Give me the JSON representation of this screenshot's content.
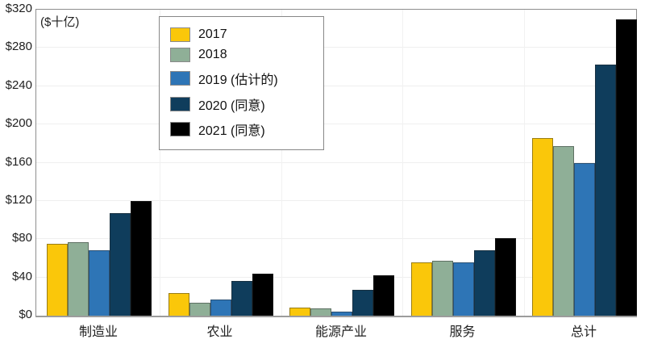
{
  "chart_data": {
    "type": "bar",
    "unit_label": "($十亿)",
    "categories": [
      "制造业",
      "农业",
      "能源产业",
      "服务",
      "总计"
    ],
    "series": [
      {
        "name": "2017",
        "color": "#FAC70A",
        "values": [
          75,
          24,
          8.5,
          56,
          186
        ]
      },
      {
        "name": "2018",
        "color": "#8FAF97",
        "values": [
          77,
          13.5,
          8,
          57.5,
          177.5
        ]
      },
      {
        "name": "2019 (估计的)",
        "color": "#2E75B6",
        "values": [
          68,
          16.5,
          4.5,
          56,
          159.5
        ]
      },
      {
        "name": "2020 (同意)",
        "color": "#0F3D5C",
        "values": [
          107.5,
          36.5,
          27,
          68.5,
          263
        ]
      },
      {
        "name": "2021 (同意)",
        "color": "#000000",
        "values": [
          119.5,
          43.5,
          42.5,
          81,
          309.5
        ]
      }
    ],
    "ylim": [
      0,
      320
    ],
    "y_tick_step": 40,
    "y_tick_labels": [
      "$0",
      "$40",
      "$80",
      "$120",
      "$160",
      "$200",
      "$240",
      "$280",
      "$320"
    ],
    "grid": "horizontal gridlines every 40, light vertical dividers between categories",
    "legend_position": "upper-left inside plot",
    "background_color": "#ffffff",
    "axis_frame_color": "#8e8e8e"
  }
}
